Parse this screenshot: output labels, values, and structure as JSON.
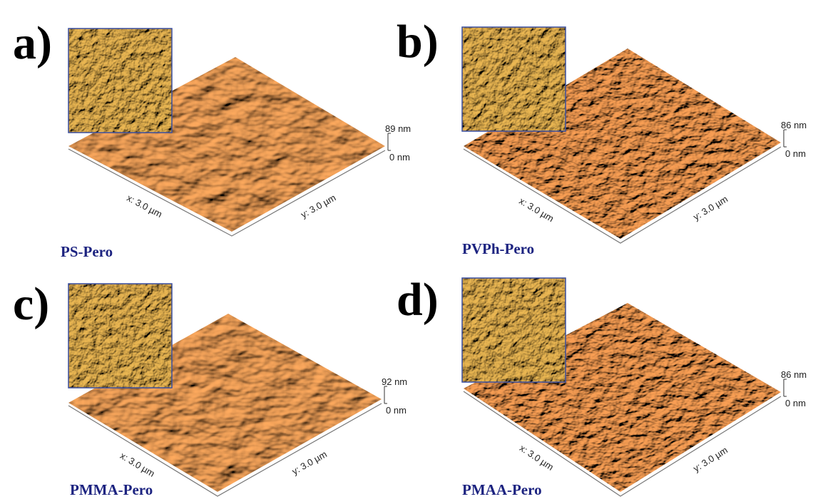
{
  "panels": [
    {
      "label": "a)",
      "name": "PS-Pero",
      "z_max": "89 nm",
      "z_min": "0 nm",
      "x_axis": "x: 3.0 µm",
      "y_axis": "y: 3.0 µm"
    },
    {
      "label": "b)",
      "name": "PVPh-Pero",
      "z_max": "86 nm",
      "z_min": "0 nm",
      "x_axis": "x: 3.0 µm",
      "y_axis": "y: 3.0 µm"
    },
    {
      "label": "c)",
      "name": "PMMA-Pero",
      "z_max": "92 nm",
      "z_min": "0 nm",
      "x_axis": "x: 3.0 µm",
      "y_axis": "y: 3.0 µm"
    },
    {
      "label": "d)",
      "name": "PMAA-Pero",
      "z_max": "86 nm",
      "z_min": "0 nm",
      "x_axis": "x: 3.0 µm",
      "y_axis": "y: 3.0 µm"
    }
  ]
}
